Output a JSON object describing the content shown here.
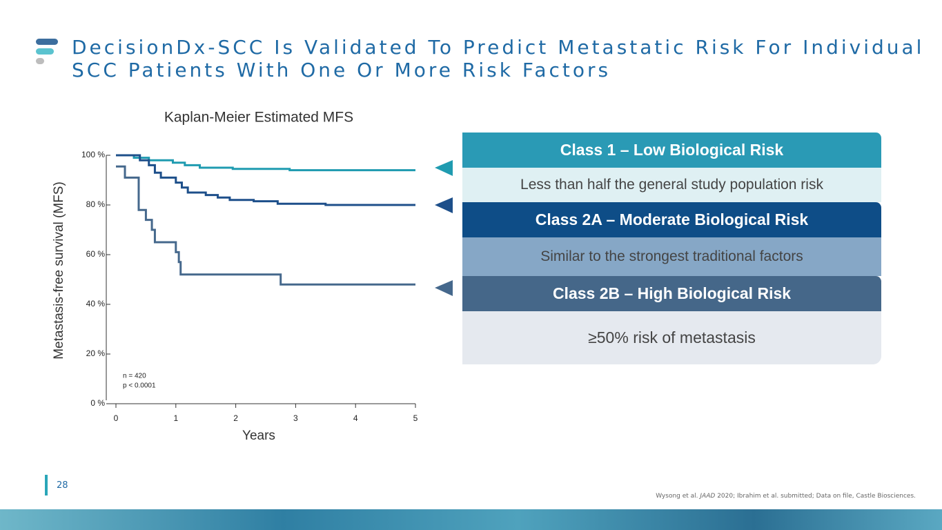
{
  "title_lines": [
    "DecisionDx-SCC Is Validated To Predict Metastatic Risk For Individual",
    "SCC Patients With One Or More Risk Factors"
  ],
  "page_number": "28",
  "citation": [
    "Wysong et al.",
    "JAAD",
    "2020; Ibrahim et al. submitted; Data on file, Castle Biosciences."
  ],
  "classes": [
    {
      "heading": "Class 1 – Low Biological Risk",
      "description": "Less than half the general study population risk"
    },
    {
      "heading": "Class 2A – Moderate Biological Risk",
      "description": "Similar to the strongest traditional factors"
    },
    {
      "heading": "Class 2B – High Biological Risk",
      "description": "≥50% risk of metastasis"
    }
  ],
  "chart_data": {
    "type": "line",
    "step": true,
    "title": "Kaplan-Meier Estimated MFS",
    "x_label": "Years",
    "y_label": "Metastasis-free survival (MFS)",
    "annotations": [
      "n = 420",
      "p < 0.0001"
    ],
    "xlim": [
      0,
      5
    ],
    "xticks": [
      0,
      1,
      2,
      3,
      4,
      5
    ],
    "ylim": [
      0,
      100
    ],
    "yticks": [
      {
        "value": 0,
        "label": "0 %"
      },
      {
        "value": 20,
        "label": "20 %"
      },
      {
        "value": 40,
        "label": "40 %"
      },
      {
        "value": 60,
        "label": "60 %"
      },
      {
        "value": 80,
        "label": "80 %"
      },
      {
        "value": 100,
        "label": "100 %"
      }
    ],
    "series": [
      {
        "color": "#1f9bb0",
        "x": [
          0,
          0.3,
          0.55,
          0.95,
          1.15,
          1.4,
          1.95,
          2.9,
          5
        ],
        "values": [
          100,
          99,
          98,
          97,
          96,
          95,
          94.5,
          94,
          94
        ]
      },
      {
        "color": "#1d4f8a",
        "x": [
          0,
          0.25,
          0.4,
          0.55,
          0.65,
          0.75,
          1.0,
          1.1,
          1.2,
          1.5,
          1.7,
          1.9,
          2.3,
          2.7,
          3.5,
          5
        ],
        "values": [
          100,
          100,
          98,
          96,
          93,
          91,
          89,
          87,
          85,
          84,
          83,
          82,
          81.5,
          80.5,
          80,
          80
        ]
      },
      {
        "color": "#45688c",
        "x": [
          0,
          0.15,
          0.38,
          0.5,
          0.6,
          0.65,
          1.0,
          1.05,
          1.08,
          2.75,
          5
        ],
        "values": [
          95.5,
          91,
          78,
          74,
          70,
          65,
          61,
          57,
          52,
          48,
          48
        ]
      }
    ]
  }
}
